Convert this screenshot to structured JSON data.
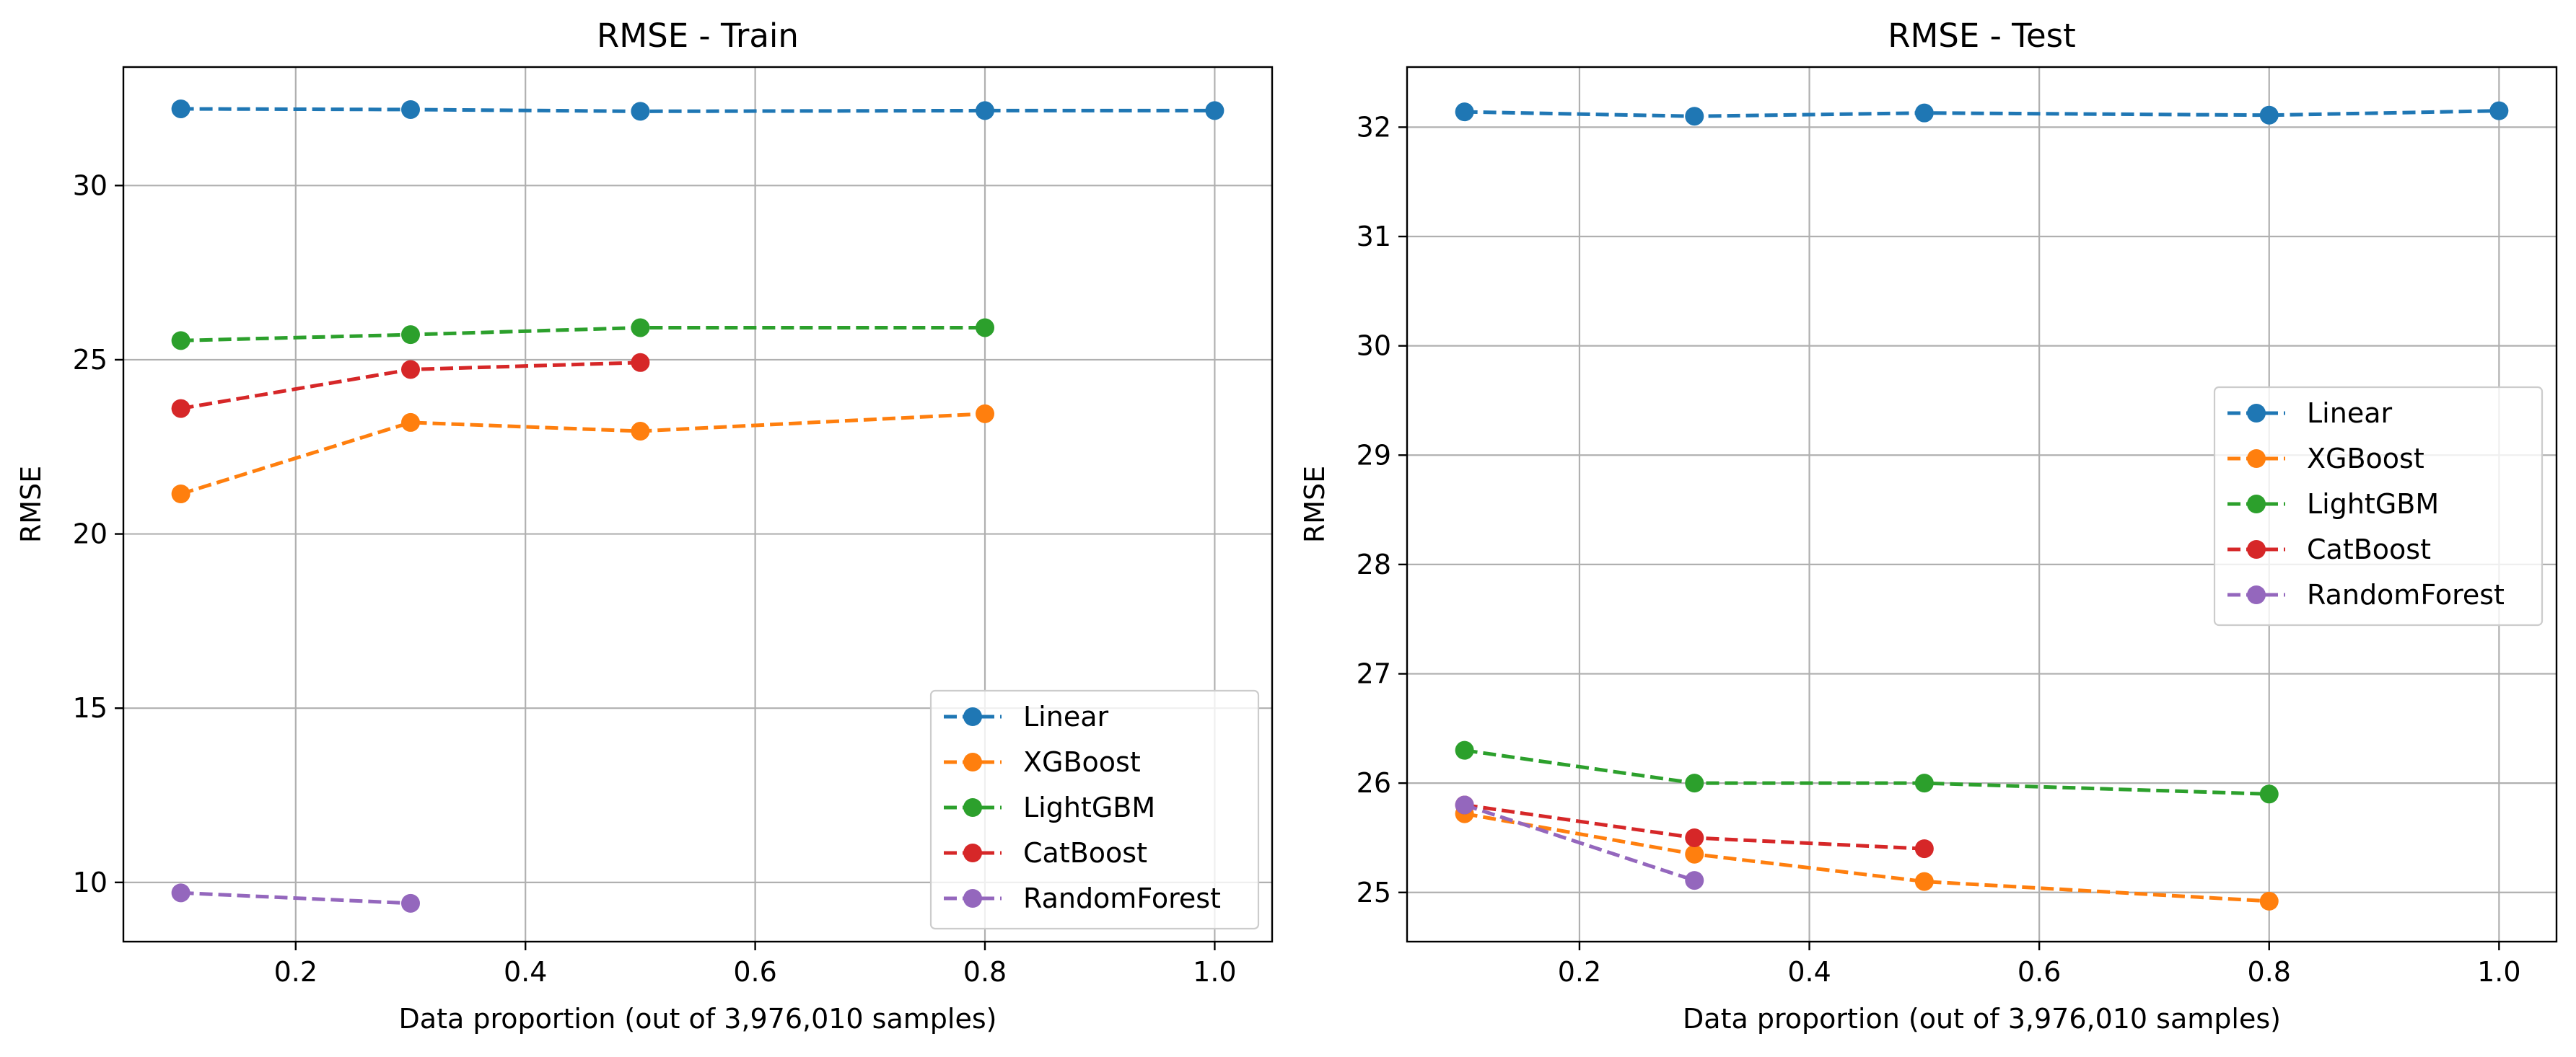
{
  "chart_data": [
    {
      "type": "line",
      "title": "RMSE - Train",
      "xlabel": "Data proportion (out of 3,976,010 samples)",
      "ylabel": "RMSE",
      "xlim": [
        0.05,
        1.05
      ],
      "ylim": [
        8.3,
        33.4
      ],
      "xticks": [
        0.2,
        0.4,
        0.6,
        0.8,
        1.0
      ],
      "xtick_labels": [
        "0.2",
        "0.4",
        "0.6",
        "0.8",
        "1.0"
      ],
      "yticks": [
        10,
        15,
        20,
        25,
        30
      ],
      "ytick_labels": [
        "10",
        "15",
        "20",
        "25",
        "30"
      ],
      "grid": true,
      "legend": "lower-right",
      "series": [
        {
          "name": "Linear",
          "color": "#1f77b4",
          "x": [
            0.1,
            0.3,
            0.5,
            0.8,
            1.0
          ],
          "y": [
            32.2,
            32.18,
            32.13,
            32.15,
            32.15
          ]
        },
        {
          "name": "XGBoost",
          "color": "#ff7f0e",
          "x": [
            0.1,
            0.3,
            0.5,
            0.8
          ],
          "y": [
            21.15,
            23.2,
            22.95,
            23.45
          ]
        },
        {
          "name": "LightGBM",
          "color": "#2ca02c",
          "x": [
            0.1,
            0.3,
            0.5,
            0.8
          ],
          "y": [
            25.55,
            25.72,
            25.92,
            25.92
          ]
        },
        {
          "name": "CatBoost",
          "color": "#d62728",
          "x": [
            0.1,
            0.3,
            0.5
          ],
          "y": [
            23.6,
            24.72,
            24.92
          ]
        },
        {
          "name": "RandomForest",
          "color": "#9467bd",
          "x": [
            0.1,
            0.3
          ],
          "y": [
            9.7,
            9.4
          ]
        }
      ]
    },
    {
      "type": "line",
      "title": "RMSE - Test",
      "xlabel": "Data proportion (out of 3,976,010 samples)",
      "ylabel": "RMSE",
      "xlim": [
        0.05,
        1.05
      ],
      "ylim": [
        24.55,
        32.55
      ],
      "xticks": [
        0.2,
        0.4,
        0.6,
        0.8,
        1.0
      ],
      "xtick_labels": [
        "0.2",
        "0.4",
        "0.6",
        "0.8",
        "1.0"
      ],
      "yticks": [
        25,
        26,
        27,
        28,
        29,
        30,
        31,
        32
      ],
      "ytick_labels": [
        "25",
        "26",
        "27",
        "28",
        "29",
        "30",
        "31",
        "32"
      ],
      "grid": true,
      "legend": "center-right",
      "series": [
        {
          "name": "Linear",
          "color": "#1f77b4",
          "x": [
            0.1,
            0.3,
            0.5,
            0.8,
            1.0
          ],
          "y": [
            32.14,
            32.1,
            32.13,
            32.11,
            32.15
          ]
        },
        {
          "name": "XGBoost",
          "color": "#ff7f0e",
          "x": [
            0.1,
            0.3,
            0.5,
            0.8
          ],
          "y": [
            25.72,
            25.35,
            25.1,
            24.92
          ]
        },
        {
          "name": "LightGBM",
          "color": "#2ca02c",
          "x": [
            0.1,
            0.3,
            0.5,
            0.8
          ],
          "y": [
            26.3,
            26.0,
            26.0,
            25.9
          ]
        },
        {
          "name": "CatBoost",
          "color": "#d62728",
          "x": [
            0.1,
            0.3,
            0.5
          ],
          "y": [
            25.8,
            25.5,
            25.4
          ]
        },
        {
          "name": "RandomForest",
          "color": "#9467bd",
          "x": [
            0.1,
            0.3
          ],
          "y": [
            25.8,
            25.11
          ]
        }
      ]
    }
  ]
}
